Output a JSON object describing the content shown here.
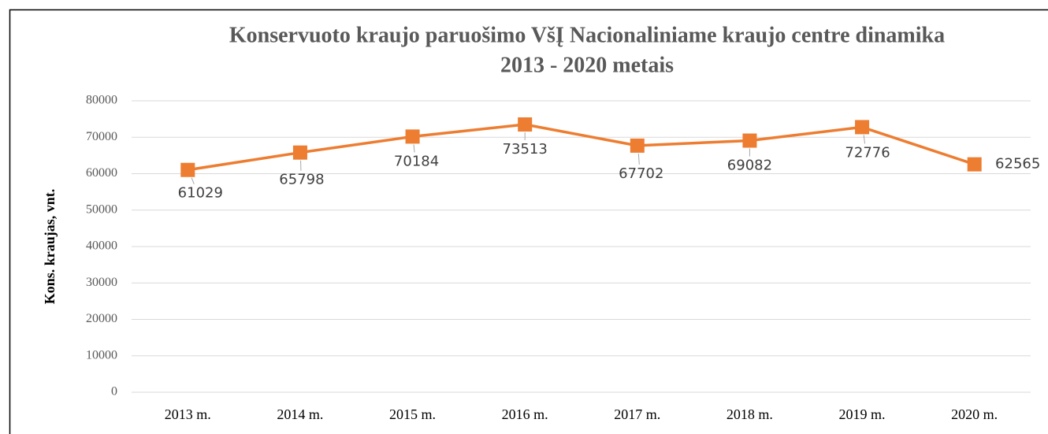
{
  "chart_data": {
    "type": "line",
    "title": [
      "Konservuoto kraujo paruošimo VšĮ Nacionaliniame kraujo centre dinamika",
      "2013 - 2020 metais"
    ],
    "y_label": "Kons. kraujas, vnt.",
    "categories": [
      "2013 m.",
      "2014 m.",
      "2015 m.",
      "2016 m.",
      "2017 m.",
      "2018 m.",
      "2019 m.",
      "2020 m."
    ],
    "values": [
      61029,
      65798,
      70184,
      73513,
      67702,
      69082,
      72776,
      62565
    ],
    "color": "#ED7D31",
    "ylim": [
      0,
      80000
    ],
    "yticks": [
      0,
      10000,
      20000,
      30000,
      40000,
      50000,
      60000,
      70000,
      80000
    ],
    "grid": true
  }
}
